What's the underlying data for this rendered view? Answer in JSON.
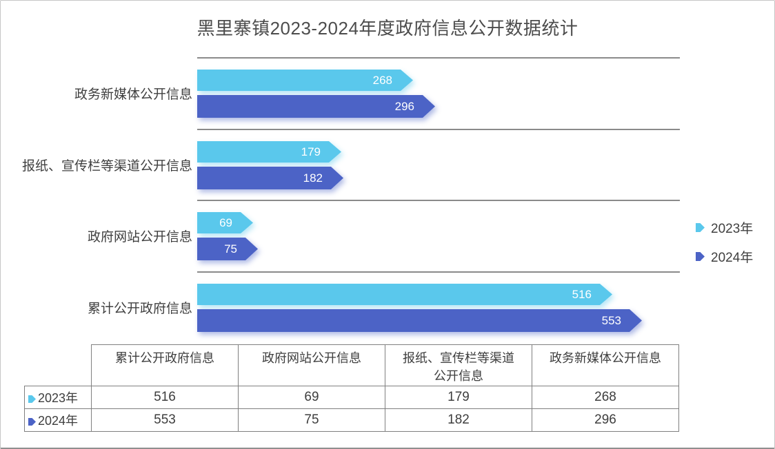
{
  "title": "黑里寨镇2023-2024年度政府信息公开数据统计",
  "colors": {
    "series_2023": "#5AC8EC",
    "series_2024": "#4C63C6",
    "separator": "#8a8a8a",
    "table_border": "#7f7f7f",
    "title_text": "#4c4c4c",
    "label_text": "#3f3f3f",
    "bar_value_text": "#ffffff"
  },
  "chart_data": {
    "type": "bar",
    "orientation": "horizontal",
    "title": "黑里寨镇2023-2024年度政府信息公开数据统计",
    "categories": [
      "政务新媒体公开信息",
      "报纸、宣传栏等渠道公开信息",
      "政府网站公开信息",
      "累计公开政府信息"
    ],
    "series": [
      {
        "name": "2023年",
        "color": "#5AC8EC",
        "values": [
          268,
          179,
          69,
          516
        ]
      },
      {
        "name": "2024年",
        "color": "#4C63C6",
        "values": [
          296,
          182,
          75,
          553
        ]
      }
    ],
    "xlim": [
      0,
      600
    ],
    "grid": "horizontal category separator lines",
    "legend_position": "right-middle",
    "bar_labels": "inside-end white",
    "bar_shape": "right-pointing arrow"
  },
  "legend": {
    "items": [
      {
        "label": "2023年",
        "color": "#5AC8EC"
      },
      {
        "label": "2024年",
        "color": "#4C63C6"
      }
    ]
  },
  "data_table": {
    "corner_label": "",
    "columns": [
      "累计公开政府信息",
      "政府网站公开信息",
      "报纸、宣传栏等渠道公开信息",
      "政务新媒体公开信息"
    ],
    "rows": [
      {
        "label": "2023年",
        "marker_color": "#5AC8EC",
        "values": [
          "516",
          "69",
          "179",
          "268"
        ]
      },
      {
        "label": "2024年",
        "marker_color": "#4C63C6",
        "values": [
          "553",
          "75",
          "182",
          "296"
        ]
      }
    ]
  }
}
